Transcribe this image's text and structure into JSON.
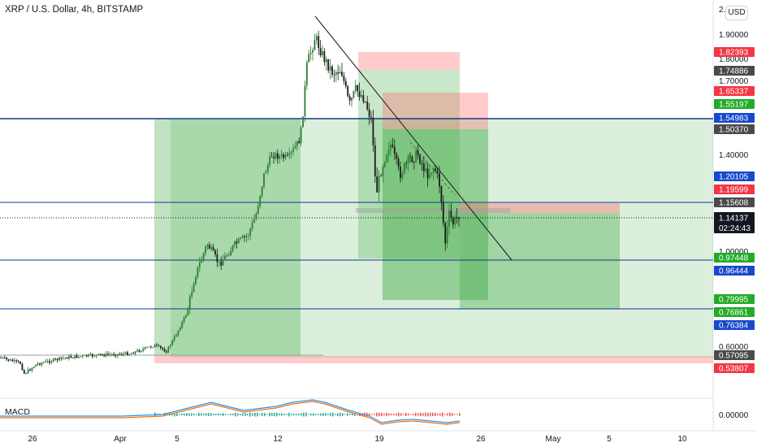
{
  "header": {
    "title": "XRP / U.S. Dollar, 4h, BITSTAMP",
    "currency_button": "USD"
  },
  "indicator": {
    "label": "MACD"
  },
  "chart_data": {
    "type": "candlestick",
    "symbol": "XRP / U.S. Dollar",
    "interval": "4h",
    "exchange": "BITSTAMP",
    "x_ticks": [
      "26",
      "Apr",
      "5",
      "12",
      "19",
      "26",
      "May",
      "5",
      "10"
    ],
    "y_ticks": [
      "2.0",
      "1.90000",
      "1.80000",
      "1.70000",
      "1.40000",
      "1.00000",
      "0.60000",
      "0.00000"
    ],
    "macd_zero_label": "0.00000",
    "current_price": "1.14137",
    "countdown": "02:24:43",
    "horizontal_levels": [
      1.54983,
      1.15608,
      0.97448,
      0.76861
    ],
    "price_tags": [
      {
        "value": "1.82393",
        "color": "#f23645"
      },
      {
        "value": "1.74886",
        "color": "#4a4a4a"
      },
      {
        "value": "1.65337",
        "color": "#f23645"
      },
      {
        "value": "1.55197",
        "color": "#22ab28"
      },
      {
        "value": "1.54983",
        "color": "#1848cc"
      },
      {
        "value": "1.50370",
        "color": "#4a4a4a"
      },
      {
        "value": "1.20105",
        "color": "#1848cc"
      },
      {
        "value": "1.19599",
        "color": "#f23645"
      },
      {
        "value": "1.15608",
        "color": "#4a4a4a"
      },
      {
        "value": "1.14137",
        "color": "#131722"
      },
      {
        "value": "0.97448",
        "color": "#22ab28"
      },
      {
        "value": "0.96444",
        "color": "#1848cc"
      },
      {
        "value": "0.79995",
        "color": "#22ab28"
      },
      {
        "value": "0.76861",
        "color": "#22ab28"
      },
      {
        "value": "0.76384",
        "color": "#1848cc"
      },
      {
        "value": "0.57095",
        "color": "#4a4a4a"
      },
      {
        "value": "0.53807",
        "color": "#f23645"
      }
    ],
    "colors": {
      "bull": "#2e7d32",
      "bear": "#1b1b1b",
      "profit_zone": "#4caf50",
      "loss_zone": "#ff6b6b",
      "level_line": "#0b3a8a",
      "macd": "#2196f3",
      "signal": "#ff6d00"
    }
  }
}
